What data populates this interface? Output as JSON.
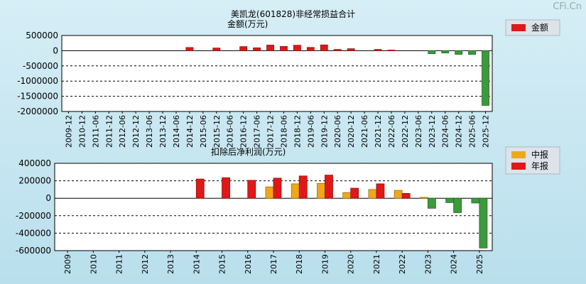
{
  "page": {
    "title": "美凯龙(601828)非经常损益合计",
    "watermark": "CFi.Cn"
  },
  "chart_data": [
    {
      "type": "bar",
      "title": "美凯龙(601828)非经常损益合计",
      "subtitle": "金额(万元)",
      "categories": [
        "2009-12",
        "2010-12",
        "2011-06",
        "2011-12",
        "2012-06",
        "2012-12",
        "2013-06",
        "2013-12",
        "2014-06",
        "2014-12",
        "2015-06",
        "2015-12",
        "2016-06",
        "2016-12",
        "2017-06",
        "2017-12",
        "2018-06",
        "2018-12",
        "2019-06",
        "2019-12",
        "2020-06",
        "2020-12",
        "2021-06",
        "2021-12",
        "2022-06",
        "2022-12",
        "2023-06",
        "2023-12",
        "2024-06",
        "2024-12",
        "2025-06",
        "2025-12"
      ],
      "series": [
        {
          "name": "金额",
          "color": "#e01818",
          "values": [
            0,
            0,
            0,
            0,
            0,
            0,
            0,
            0,
            0,
            105000,
            0,
            88000,
            0,
            135000,
            95000,
            185000,
            140000,
            180000,
            108000,
            190000,
            42000,
            65000,
            0,
            42000,
            20000,
            0,
            0,
            -100000,
            -75000,
            -120000,
            -125000,
            -1800000
          ]
        }
      ],
      "ylim": [
        -2000000,
        500000
      ],
      "yticks": [
        500000,
        0,
        -500000,
        -1000000,
        -1500000,
        -2000000
      ],
      "ytick_labels": [
        "500000",
        "0",
        "-500000",
        "-1000000",
        "-1500000",
        "-2000000"
      ],
      "legend": {
        "position": "top-right",
        "items": [
          "金额"
        ]
      },
      "grid": true
    },
    {
      "type": "bar",
      "title": "扣除后净利润(万元)",
      "categories": [
        "2009",
        "2010",
        "2011",
        "2012",
        "2013",
        "2014",
        "2015",
        "2016",
        "2017",
        "2018",
        "2019",
        "2020",
        "2021",
        "2022",
        "2023",
        "2024",
        "2025"
      ],
      "series": [
        {
          "name": "中报",
          "color": "#f0a818",
          "values": [
            null,
            null,
            null,
            null,
            null,
            null,
            null,
            null,
            130000,
            165000,
            170000,
            65000,
            100000,
            90000,
            10000,
            -50000,
            -55000
          ]
        },
        {
          "name": "年报",
          "color": "#e01818",
          "values": [
            null,
            null,
            null,
            null,
            null,
            220000,
            235000,
            205000,
            230000,
            255000,
            265000,
            115000,
            165000,
            55000,
            -115000,
            -165000,
            -570000
          ]
        }
      ],
      "ylim": [
        -600000,
        400000
      ],
      "yticks": [
        400000,
        200000,
        0,
        -200000,
        -400000,
        -600000
      ],
      "ytick_labels": [
        "400000",
        "200000",
        "0",
        "-200000",
        "-400000",
        "-600000"
      ],
      "legend": {
        "position": "top-right",
        "items": [
          "中报",
          "年报"
        ]
      },
      "grid": true
    }
  ]
}
